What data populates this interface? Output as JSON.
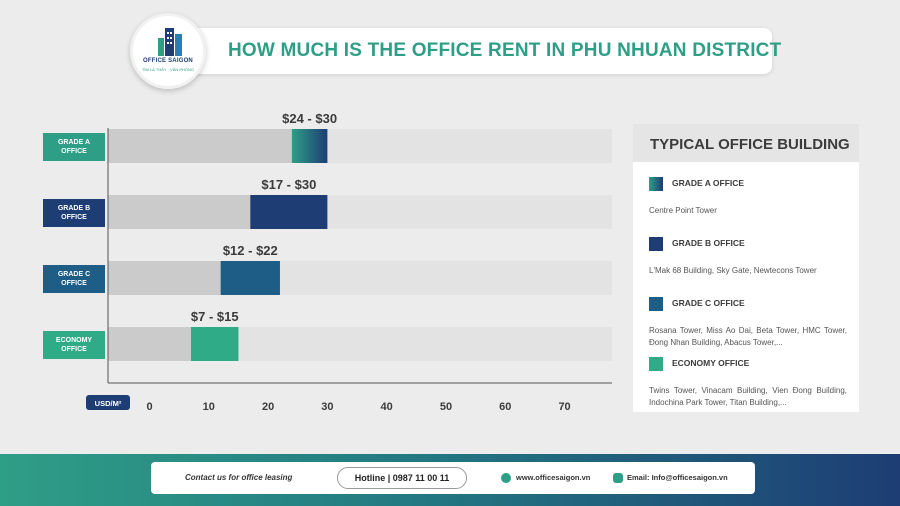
{
  "header": {
    "title": "HOW MUCH IS THE OFFICE RENT IN PHU NHUAN DISTRICT"
  },
  "logo": {
    "name": "OFFICE SAIGON",
    "tagline": "TÌM LÀ THẤY · VĂN PHÒNG"
  },
  "colors": {
    "grade_a_from": "#2f9e86",
    "grade_a_to": "#1d3d74",
    "grade_b": "#1d3d74",
    "grade_c": "#1d5d86",
    "economy": "#2fab88",
    "track": "#e3e3e3",
    "base_bar": "#cbcbcb",
    "brand_green": "#2f9e86"
  },
  "chart_data": {
    "type": "bar",
    "orientation": "horizontal",
    "unit_label": "USD/M²",
    "xlim": [
      -7,
      78
    ],
    "x_ticks": [
      0,
      10,
      20,
      30,
      40,
      50,
      60,
      70
    ],
    "categories": [
      "GRADE A OFFICE",
      "GRADE B OFFICE",
      "GRADE C OFFICE",
      "ECONOMY OFFICE"
    ],
    "ranges": [
      {
        "category": "GRADE A OFFICE",
        "min": 24,
        "max": 30,
        "label": "$24 - $30",
        "color": "gradient"
      },
      {
        "category": "GRADE B OFFICE",
        "min": 17,
        "max": 30,
        "label": "$17 - $30",
        "color": "#1d3d74"
      },
      {
        "category": "GRADE C OFFICE",
        "min": 12,
        "max": 22,
        "label": "$12 - $22",
        "color": "#1d5d86"
      },
      {
        "category": "ECONOMY OFFICE",
        "min": 7,
        "max": 15,
        "label": "$7 - $15",
        "color": "#2fab88"
      }
    ],
    "grid": false
  },
  "legend": {
    "title": "TYPICAL OFFICE BUILDING",
    "items": [
      {
        "name": "GRADE A OFFICE",
        "desc": "Centre Point Tower"
      },
      {
        "name": "GRADE B OFFICE",
        "desc": "L'Mak 68 Building, Sky Gate, Newtecons Tower"
      },
      {
        "name": "GRADE C OFFICE",
        "desc": "Rosana Tower, Miss Ao Dai, Beta Tower, HMC Tower, Đong Nhan Building, Abacus Tower,..."
      },
      {
        "name": "ECONOMY OFFICE",
        "desc": "Twins Tower, Vinacam Building, Vien Đong Building, Indochina Park Tower, Titan Building,..."
      }
    ]
  },
  "footer": {
    "contact": "Contact us for office leasing",
    "hotline": "Hotline | 0987 11 00 11",
    "website": "www.officesaigon.vn",
    "email": "Email: Info@officesaigon.vn"
  }
}
